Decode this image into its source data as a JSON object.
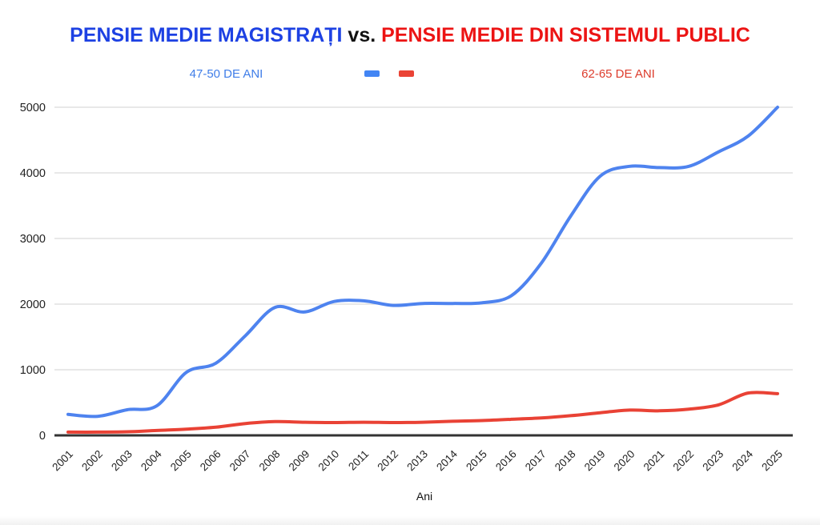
{
  "title": {
    "part1": "PENSIE MEDIE MAGISTRAȚI",
    "separator": " vs. ",
    "part2": "PENSIE MEDIE DIN SISTEMUL PUBLIC",
    "part1_color": "#1d41e3",
    "part2_color": "#ec1414"
  },
  "legend": {
    "left_label": "47-50 DE ANI",
    "left_color": "#3f7de8",
    "right_label": "62-65 DE ANI",
    "right_color": "#dd3c2c",
    "marker_blue_color": "#4285F4",
    "marker_red_color": "#EA4335"
  },
  "chart_data": {
    "type": "line",
    "smooth": true,
    "title": "PENSIE MEDIE MAGISTRAȚI vs. PENSIE MEDIE DIN SISTEMUL PUBLIC",
    "xlabel": "Ani",
    "ylabel": "",
    "categories": [
      "2001",
      "2002",
      "2003",
      "2004",
      "2005",
      "2006",
      "2007",
      "2008",
      "2009",
      "2010",
      "2011",
      "2012",
      "2013",
      "2014",
      "2015",
      "2016",
      "2017",
      "2018",
      "2019",
      "2020",
      "2021",
      "2022",
      "2023",
      "2024",
      "2025"
    ],
    "series": [
      {
        "name": "47-50 DE ANI",
        "color": "#4e83ef",
        "values": [
          320,
          290,
          390,
          450,
          960,
          1100,
          1520,
          1950,
          1880,
          2040,
          2050,
          1980,
          2010,
          2010,
          2020,
          2130,
          2620,
          3340,
          3950,
          4100,
          4080,
          4100,
          4320,
          4560,
          5000
        ]
      },
      {
        "name": "62-65 DE ANI",
        "color": "#e94235",
        "values": [
          50,
          50,
          55,
          75,
          95,
          125,
          180,
          210,
          200,
          195,
          200,
          195,
          200,
          215,
          225,
          245,
          265,
          300,
          345,
          385,
          375,
          400,
          465,
          645,
          635
        ]
      }
    ],
    "ylim": [
      0,
      5000
    ],
    "yticks": [
      0,
      1000,
      2000,
      3000,
      4000,
      5000
    ],
    "grid": true,
    "grid_color": "#dadada",
    "axis_color": "#333333",
    "tick_label_color": "#222222",
    "legend_position": "top"
  }
}
